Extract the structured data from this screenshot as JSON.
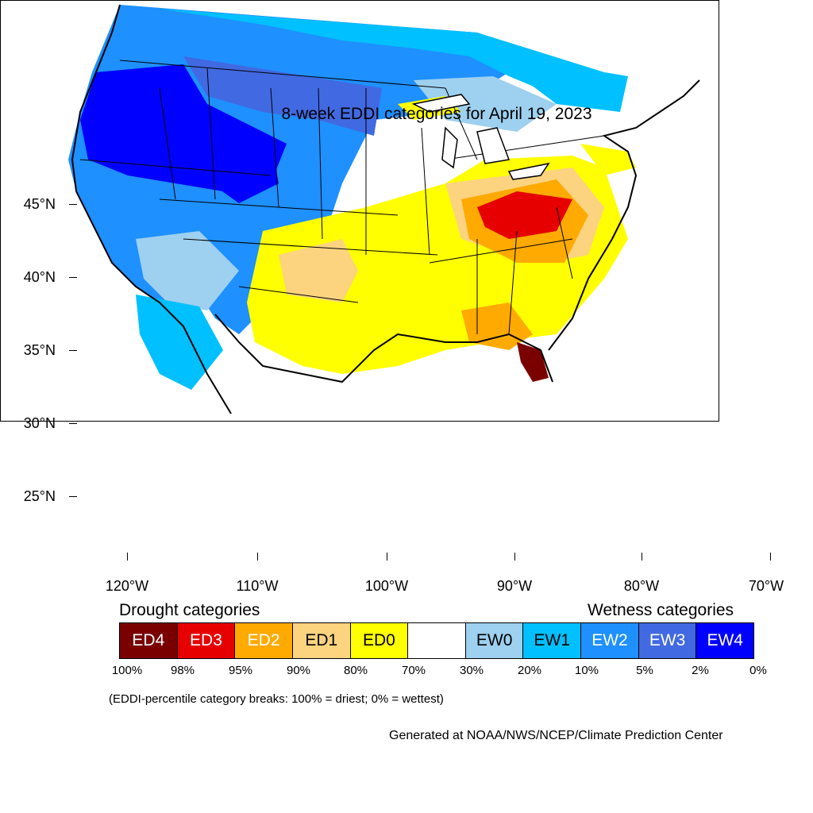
{
  "title": "8-week EDDI categories for April 19, 2023",
  "axes": {
    "latitude_labels": [
      "45°N",
      "40°N",
      "35°N",
      "30°N",
      "25°N"
    ],
    "longitude_labels": [
      "120°W",
      "110°W",
      "100°W",
      "90°W",
      "80°W",
      "70°W"
    ]
  },
  "legend": {
    "drought_heading": "Drought categories",
    "wetness_heading": "Wetness categories",
    "categories": [
      {
        "label": "ED4",
        "color": "#7a0000"
      },
      {
        "label": "ED3",
        "color": "#e60000"
      },
      {
        "label": "ED2",
        "color": "#ffaa00"
      },
      {
        "label": "ED1",
        "color": "#fcd37f"
      },
      {
        "label": "ED0",
        "color": "#ffff00"
      },
      {
        "label": "",
        "color": "#ffffff"
      },
      {
        "label": "EW0",
        "color": "#9ed0ef"
      },
      {
        "label": "EW1",
        "color": "#00c0ff"
      },
      {
        "label": "EW2",
        "color": "#1e90ff"
      },
      {
        "label": "EW3",
        "color": "#4169e1"
      },
      {
        "label": "EW4",
        "color": "#0000ff"
      }
    ],
    "percent_breaks": [
      "100%",
      "98%",
      "95%",
      "90%",
      "80%",
      "70%",
      "30%",
      "20%",
      "10%",
      "5%",
      "2%",
      "0%"
    ]
  },
  "note": "(EDDI-percentile category breaks: 100% = driest; 0% = wettest)",
  "credit": "Generated at NOAA/NWS/NCEP/Climate Prediction Center"
}
